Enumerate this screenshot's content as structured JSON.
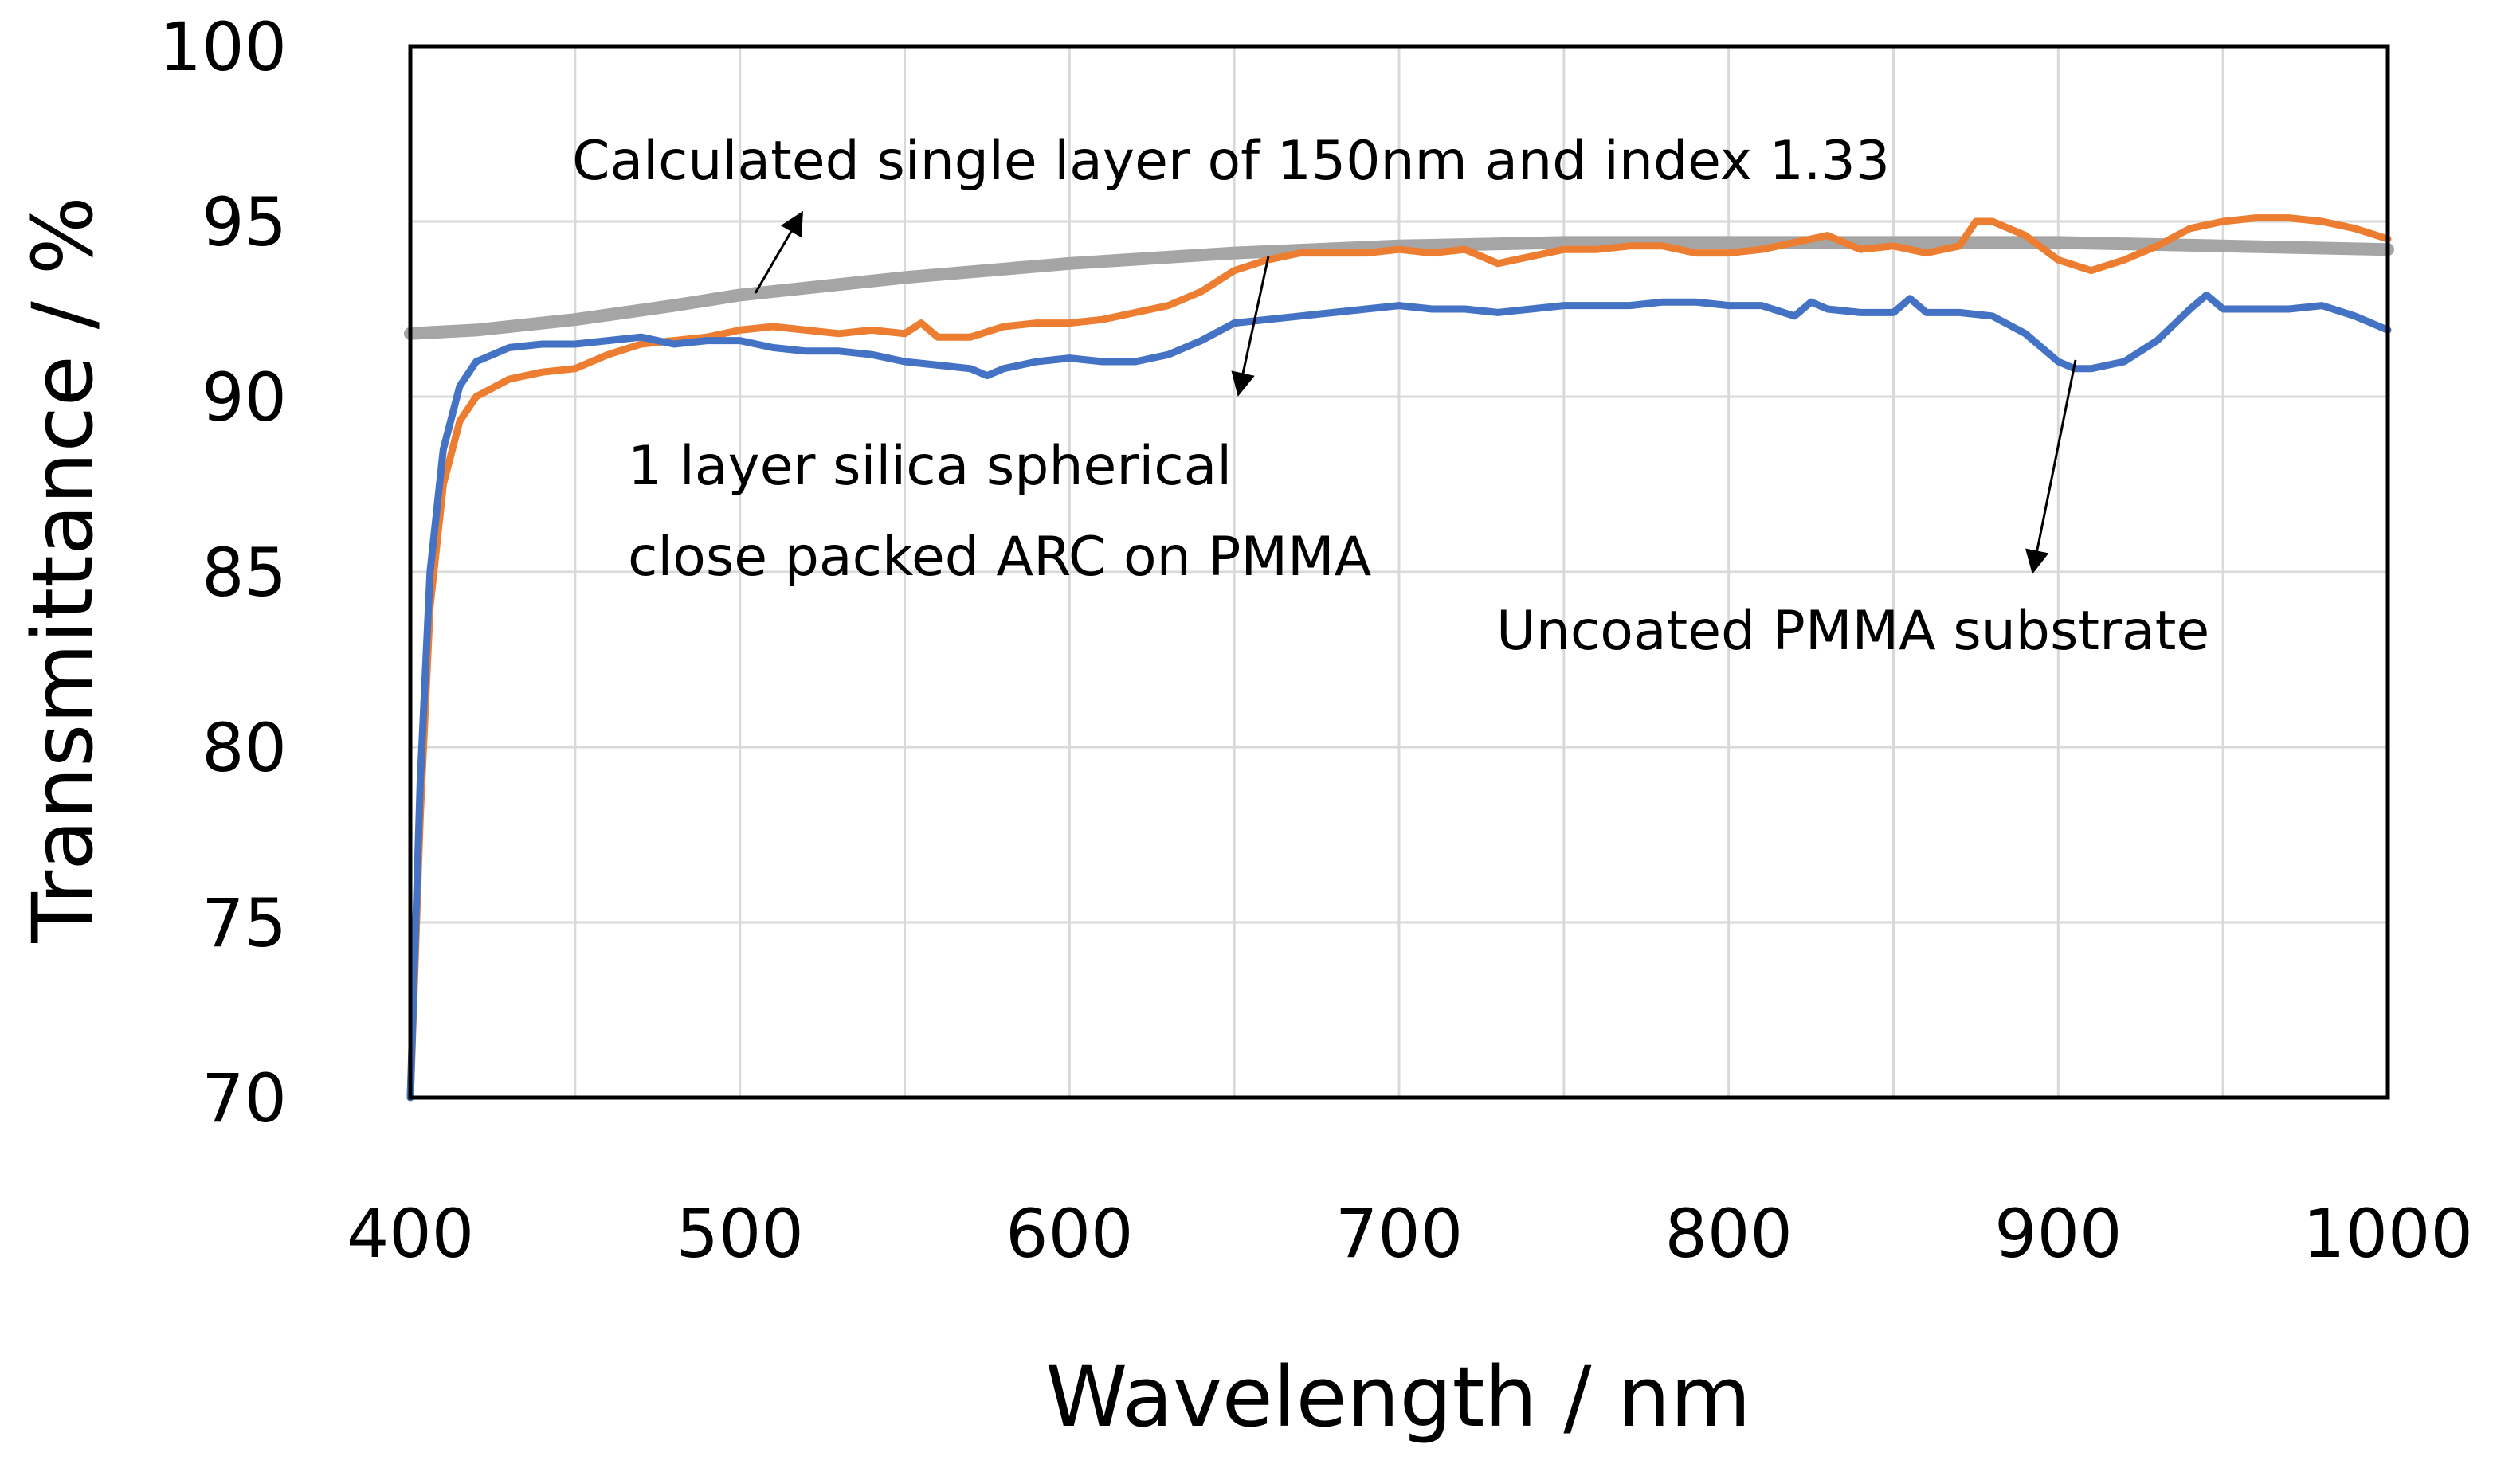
{
  "chart_data": {
    "type": "line",
    "title": "",
    "xlabel": "Wavelength / nm",
    "ylabel": "Transmittance / %",
    "xlim": [
      400,
      1000
    ],
    "ylim": [
      70,
      100
    ],
    "xticks": [
      400,
      500,
      600,
      700,
      800,
      900,
      1000
    ],
    "yticks": [
      70,
      75,
      80,
      85,
      90,
      95,
      100
    ],
    "xtick_labels": [
      "400",
      "500",
      "600",
      "700",
      "800",
      "900",
      "1000"
    ],
    "ytick_labels": [
      "70",
      "75",
      "80",
      "85",
      "90",
      "95",
      "100"
    ],
    "grid": true,
    "series": [
      {
        "name": "Calculated single layer of 150nm and index 1.33",
        "color": "#a5a5a5",
        "x": [
          400,
          420,
          450,
          480,
          500,
          550,
          600,
          650,
          700,
          750,
          800,
          850,
          900,
          950,
          1000
        ],
        "y": [
          91.8,
          91.9,
          92.2,
          92.6,
          92.9,
          93.4,
          93.8,
          94.1,
          94.3,
          94.4,
          94.4,
          94.4,
          94.4,
          94.3,
          94.2
        ]
      },
      {
        "name": "1 layer silica spherical close packed ARC on PMMA",
        "color": "#ed7d31",
        "x": [
          400,
          403,
          406,
          410,
          415,
          420,
          430,
          440,
          450,
          460,
          470,
          480,
          490,
          500,
          510,
          520,
          530,
          540,
          550,
          555,
          560,
          570,
          580,
          590,
          600,
          610,
          620,
          630,
          640,
          650,
          660,
          670,
          680,
          690,
          700,
          710,
          720,
          730,
          740,
          750,
          760,
          770,
          780,
          790,
          800,
          810,
          820,
          830,
          840,
          850,
          860,
          870,
          875,
          880,
          890,
          900,
          910,
          920,
          930,
          940,
          950,
          960,
          970,
          980,
          990,
          1000
        ],
        "y": [
          70,
          78,
          84,
          87.5,
          89.3,
          90,
          90.5,
          90.7,
          90.8,
          91.2,
          91.5,
          91.6,
          91.7,
          91.9,
          92,
          91.9,
          91.8,
          91.9,
          91.8,
          92.1,
          91.7,
          91.7,
          92.0,
          92.1,
          92.1,
          92.2,
          92.4,
          92.6,
          93.0,
          93.6,
          93.9,
          94.1,
          94.1,
          94.1,
          94.2,
          94.1,
          94.2,
          93.8,
          94.0,
          94.2,
          94.2,
          94.3,
          94.3,
          94.1,
          94.1,
          94.2,
          94.4,
          94.6,
          94.2,
          94.3,
          94.1,
          94.3,
          95.0,
          95.0,
          94.6,
          93.9,
          93.6,
          93.9,
          94.3,
          94.8,
          95.0,
          95.1,
          95.1,
          95.0,
          94.8,
          94.5
        ]
      },
      {
        "name": "Uncoated PMMA substrate",
        "color": "#4472c4",
        "x": [
          400,
          403,
          406,
          410,
          415,
          420,
          430,
          440,
          450,
          460,
          470,
          480,
          490,
          500,
          510,
          520,
          530,
          540,
          550,
          560,
          570,
          575,
          580,
          590,
          600,
          610,
          620,
          630,
          640,
          650,
          660,
          670,
          680,
          690,
          700,
          710,
          720,
          730,
          740,
          750,
          760,
          770,
          780,
          790,
          800,
          810,
          820,
          825,
          830,
          840,
          850,
          855,
          860,
          870,
          880,
          890,
          900,
          905,
          910,
          920,
          930,
          940,
          945,
          950,
          960,
          970,
          980,
          990,
          1000
        ],
        "y": [
          70,
          79,
          85,
          88.5,
          90.3,
          91.0,
          91.4,
          91.5,
          91.5,
          91.6,
          91.7,
          91.5,
          91.6,
          91.6,
          91.4,
          91.3,
          91.3,
          91.2,
          91.0,
          90.9,
          90.8,
          90.6,
          90.8,
          91.0,
          91.1,
          91.0,
          91.0,
          91.2,
          91.6,
          92.1,
          92.2,
          92.3,
          92.4,
          92.5,
          92.6,
          92.5,
          92.5,
          92.4,
          92.5,
          92.6,
          92.6,
          92.6,
          92.7,
          92.7,
          92.6,
          92.6,
          92.3,
          92.7,
          92.5,
          92.4,
          92.4,
          92.8,
          92.4,
          92.4,
          92.3,
          91.8,
          91.0,
          90.8,
          90.8,
          91.0,
          91.6,
          92.5,
          92.9,
          92.5,
          92.5,
          92.5,
          92.6,
          92.3,
          91.9
        ]
      }
    ],
    "annotations": [
      {
        "id": "calc",
        "text": "Calculated single layer of 150nm and index 1.33"
      },
      {
        "id": "arc-line1",
        "text": "1 layer silica spherical"
      },
      {
        "id": "arc-line2",
        "text": "close packed ARC on PMMA"
      },
      {
        "id": "pmma",
        "text": "Uncoated PMMA substrate"
      }
    ]
  }
}
